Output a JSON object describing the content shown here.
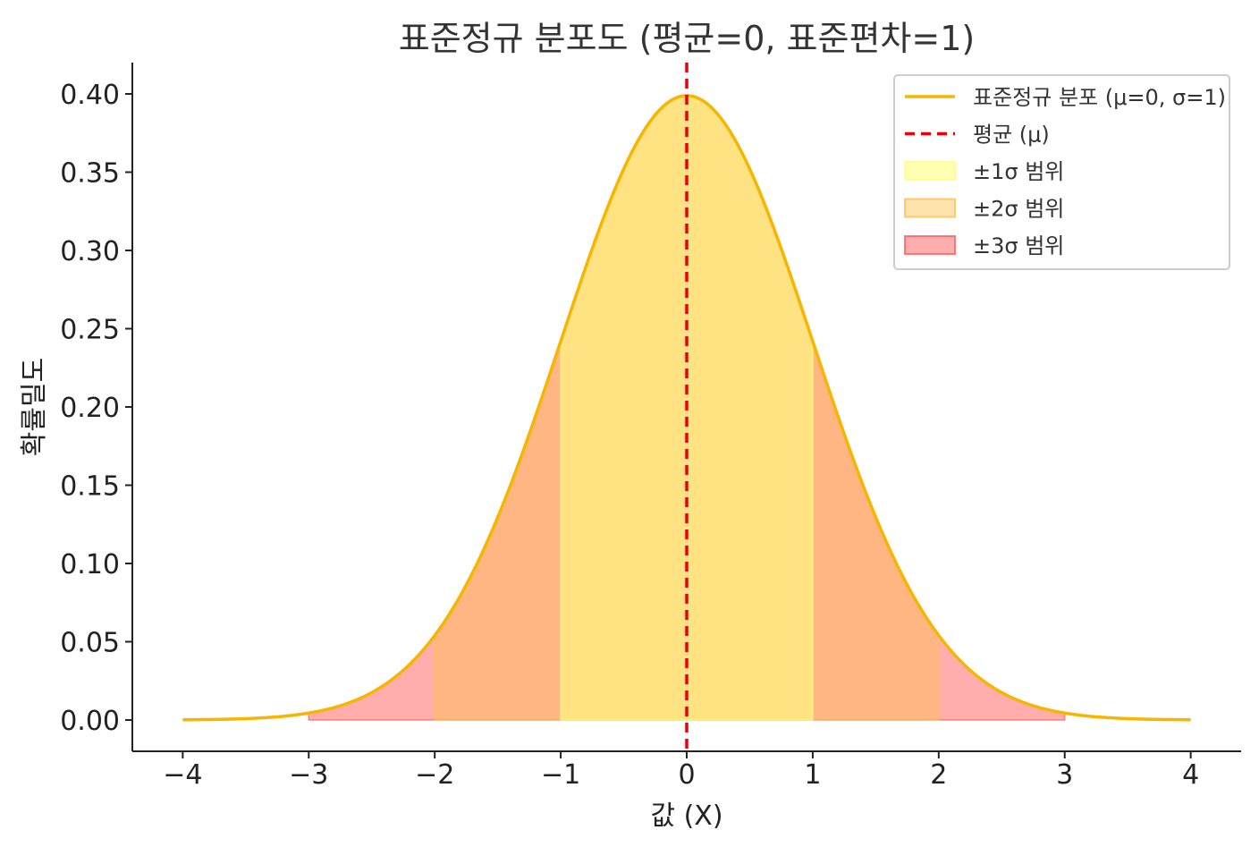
{
  "chart_data": {
    "type": "area",
    "title": "표준정규 분포도 (평균=0, 표준편차=1)",
    "xlabel": "값 (X)",
    "ylabel": "확률밀도",
    "xlim": [
      -4.4,
      4.4
    ],
    "ylim": [
      -0.02,
      0.42
    ],
    "x_ticks": [
      "−4",
      "−3",
      "−2",
      "−1",
      "0",
      "1",
      "2",
      "3",
      "4"
    ],
    "y_ticks": [
      "0.00",
      "0.05",
      "0.10",
      "0.15",
      "0.20",
      "0.25",
      "0.30",
      "0.35",
      "0.40"
    ],
    "grid": false,
    "legend_position": "top-right",
    "series": [
      {
        "name": "표준정규 분포 (μ=0, σ=1)",
        "kind": "line",
        "color": "#f7b500",
        "x": [
          -4,
          -3.5,
          -3,
          -2.5,
          -2,
          -1.5,
          -1,
          -0.5,
          0,
          0.5,
          1,
          1.5,
          2,
          2.5,
          3,
          3.5,
          4
        ],
        "y": [
          0.0001,
          0.0009,
          0.0044,
          0.0175,
          0.054,
          0.1295,
          0.242,
          0.3521,
          0.3989,
          0.3521,
          0.242,
          0.1295,
          0.054,
          0.0175,
          0.0044,
          0.0009,
          0.0001
        ]
      },
      {
        "name": "평균 (μ)",
        "kind": "vline",
        "x": 0,
        "color": "#e8000b",
        "style": "dashed"
      },
      {
        "name": "±1σ 범위",
        "kind": "band",
        "range": [
          -1,
          1
        ],
        "color": "#ffff80",
        "opacity": 0.6
      },
      {
        "name": "±2σ 범위",
        "kind": "band",
        "range": [
          -2,
          2
        ],
        "color": "#ffc04d",
        "opacity": 0.45
      },
      {
        "name": "±3σ 범위",
        "kind": "band",
        "range": [
          -3,
          3
        ],
        "color": "#ff5c5c",
        "opacity": 0.5
      }
    ]
  }
}
